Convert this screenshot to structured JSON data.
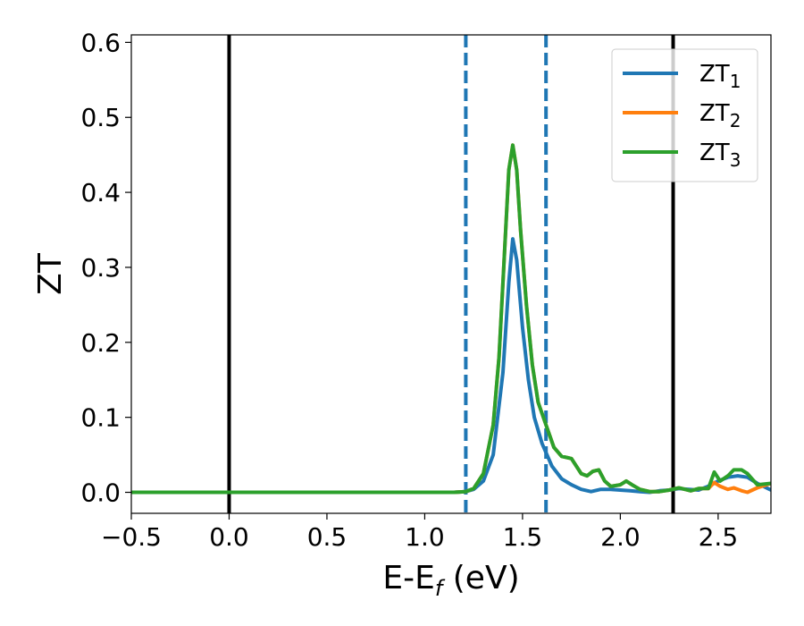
{
  "chart_data": {
    "type": "line",
    "xlabel": "E-E",
    "xlabel_sub": "f",
    "xlabel_unit": " (eV)",
    "ylabel": "ZT",
    "xlim": [
      -0.5,
      2.77
    ],
    "ylim": [
      -0.028,
      0.61
    ],
    "x_ticks": [
      -0.5,
      0.0,
      0.5,
      1.0,
      1.5,
      2.0,
      2.5
    ],
    "x_tick_labels": [
      "−0.5",
      "0.0",
      "0.5",
      "1.0",
      "1.5",
      "2.0",
      "2.5"
    ],
    "y_ticks": [
      0.0,
      0.1,
      0.2,
      0.3,
      0.4,
      0.5,
      0.6
    ],
    "y_tick_labels": [
      "0.0",
      "0.1",
      "0.2",
      "0.3",
      "0.4",
      "0.5",
      "0.6"
    ],
    "grid": false,
    "legend_position": "top-right",
    "vlines": [
      {
        "x": 0.0,
        "color": "#000000",
        "style": "solid"
      },
      {
        "x": 2.27,
        "color": "#000000",
        "style": "solid"
      },
      {
        "x": 1.21,
        "color": "#1f77b4",
        "style": "dashed"
      },
      {
        "x": 1.62,
        "color": "#1f77b4",
        "style": "dashed"
      }
    ],
    "series": [
      {
        "name": "ZT",
        "sub": "1",
        "color": "#1f77b4",
        "x": [
          -0.5,
          1.0,
          1.15,
          1.21,
          1.25,
          1.3,
          1.35,
          1.4,
          1.43,
          1.45,
          1.47,
          1.5,
          1.53,
          1.56,
          1.6,
          1.65,
          1.7,
          1.75,
          1.8,
          1.85,
          1.9,
          1.95,
          2.0,
          2.05,
          2.1,
          2.15,
          2.2,
          2.25,
          2.3,
          2.35,
          2.4,
          2.45,
          2.5,
          2.55,
          2.6,
          2.65,
          2.7,
          2.77
        ],
        "y": [
          0.0,
          0.0,
          0.0,
          0.001,
          0.004,
          0.015,
          0.05,
          0.16,
          0.28,
          0.338,
          0.31,
          0.22,
          0.15,
          0.1,
          0.065,
          0.035,
          0.018,
          0.01,
          0.004,
          0.001,
          0.004,
          0.004,
          0.003,
          0.002,
          0.001,
          0.0,
          0.002,
          0.003,
          0.005,
          0.004,
          0.003,
          0.008,
          0.015,
          0.02,
          0.022,
          0.02,
          0.012,
          0.003
        ]
      },
      {
        "name": "ZT",
        "sub": "2",
        "color": "#ff7f0e",
        "x": [
          -0.5,
          1.0,
          1.15,
          1.21,
          1.25,
          1.3,
          1.35,
          1.38,
          1.41,
          1.43,
          1.45,
          1.47,
          1.49,
          1.52,
          1.55,
          1.58,
          1.62,
          1.66,
          1.7,
          1.75,
          1.8,
          1.83,
          1.86,
          1.89,
          1.92,
          1.95,
          2.0,
          2.03,
          2.06,
          2.1,
          2.15,
          2.2,
          2.25,
          2.3,
          2.33,
          2.36,
          2.4,
          2.45,
          2.48,
          2.51,
          2.55,
          2.58,
          2.62,
          2.65,
          2.7,
          2.77
        ],
        "y": [
          0.0,
          0.0,
          0.0,
          0.001,
          0.005,
          0.025,
          0.09,
          0.18,
          0.33,
          0.43,
          0.463,
          0.43,
          0.35,
          0.25,
          0.17,
          0.12,
          0.09,
          0.06,
          0.048,
          0.045,
          0.025,
          0.022,
          0.028,
          0.03,
          0.015,
          0.008,
          0.01,
          0.015,
          0.01,
          0.004,
          0.001,
          0.001,
          0.003,
          0.006,
          0.004,
          0.002,
          0.005,
          0.005,
          0.013,
          0.008,
          0.004,
          0.006,
          0.002,
          0.0,
          0.006,
          0.012
        ]
      },
      {
        "name": "ZT",
        "sub": "3",
        "color": "#2ca02c",
        "x": [
          -0.5,
          1.0,
          1.15,
          1.21,
          1.25,
          1.3,
          1.35,
          1.38,
          1.41,
          1.43,
          1.45,
          1.47,
          1.49,
          1.52,
          1.55,
          1.58,
          1.62,
          1.66,
          1.7,
          1.75,
          1.8,
          1.83,
          1.86,
          1.89,
          1.92,
          1.95,
          2.0,
          2.03,
          2.06,
          2.1,
          2.15,
          2.2,
          2.25,
          2.3,
          2.33,
          2.36,
          2.4,
          2.45,
          2.48,
          2.51,
          2.55,
          2.58,
          2.62,
          2.65,
          2.7,
          2.77
        ],
        "y": [
          0.0,
          0.0,
          0.0,
          0.001,
          0.005,
          0.025,
          0.09,
          0.18,
          0.33,
          0.43,
          0.463,
          0.43,
          0.35,
          0.25,
          0.17,
          0.12,
          0.09,
          0.06,
          0.048,
          0.045,
          0.025,
          0.022,
          0.028,
          0.03,
          0.015,
          0.008,
          0.01,
          0.015,
          0.01,
          0.004,
          0.001,
          0.001,
          0.003,
          0.006,
          0.004,
          0.002,
          0.005,
          0.005,
          0.027,
          0.015,
          0.022,
          0.03,
          0.03,
          0.025,
          0.01,
          0.012
        ]
      }
    ]
  }
}
